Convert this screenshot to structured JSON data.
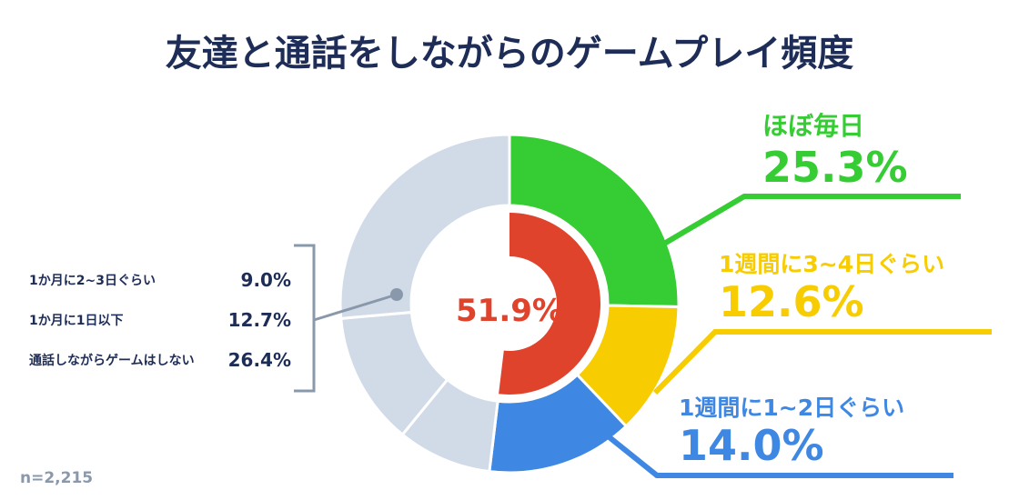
{
  "title": "友達と通話をしながらのゲームプレイ頻度",
  "colors": {
    "title": "#1e2d57",
    "daily": "#36cc33",
    "weekly34": "#f7cc00",
    "weekly12": "#3e88e4",
    "inner": "#e0432c",
    "other": "#d1dbe8",
    "leftText": "#1e2d57",
    "bracket": "#8a98ab",
    "note": "#8a98ab"
  },
  "chart_data": {
    "type": "pie",
    "categories": [
      "ほぼ毎日",
      "1週間に3~4日ぐらい",
      "1週間に1~2日ぐらい",
      "1か月に2~3日ぐらい",
      "1か月に1日以下",
      "通話しながらゲームはしない"
    ],
    "values": [
      25.3,
      12.6,
      14.0,
      9.0,
      12.7,
      26.4
    ],
    "inner_ring_value": 51.9,
    "center_label": "51.9%",
    "labels": {
      "daily": {
        "name": "ほぼ毎日",
        "value": "25.3%"
      },
      "weekly34": {
        "name": "1週間に3~4日ぐらい",
        "value": "12.6%"
      },
      "weekly12": {
        "name": "1週間に1~2日ぐらい",
        "value": "14.0%"
      }
    },
    "left_legend": [
      {
        "name": "1か月に2~3日ぐらい",
        "value": "9.0%"
      },
      {
        "name": "1か月に1日以下",
        "value": "12.7%"
      },
      {
        "name": "通話しながらゲームはしない",
        "value": "26.4%"
      }
    ]
  },
  "note": "n=2,215"
}
